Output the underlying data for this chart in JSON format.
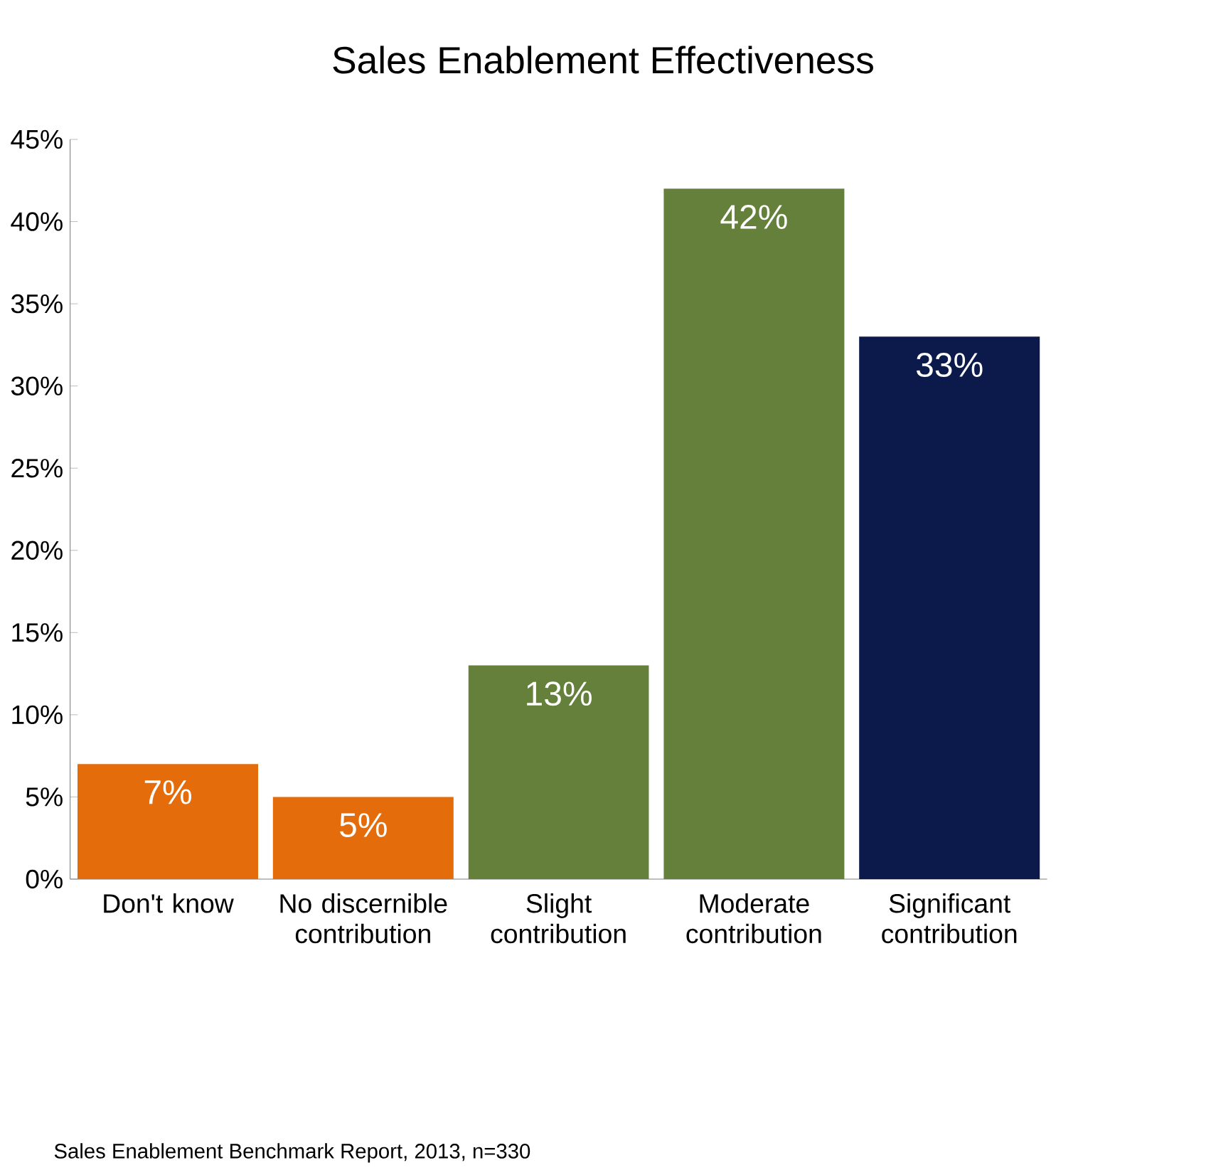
{
  "chart_data": {
    "type": "bar",
    "title": "Sales Enablement Effectiveness",
    "categories": [
      "Don't know",
      "No discernible contribution",
      "Slight contribution",
      "Moderate contribution",
      "Significant contribution"
    ],
    "values": [
      7,
      5,
      13,
      42,
      33
    ],
    "colors": [
      "#e46c0a",
      "#e46c0a",
      "#64803a",
      "#64803a",
      "#0c1a4b"
    ],
    "value_labels": [
      "7%",
      "5%",
      "13%",
      "42%",
      "33%"
    ],
    "ylim": [
      0,
      45
    ],
    "yticks": [
      {
        "value": 0,
        "label": "0%"
      },
      {
        "value": 5,
        "label": "5%"
      },
      {
        "value": 10,
        "label": "10%"
      },
      {
        "value": 15,
        "label": "15%"
      },
      {
        "value": 20,
        "label": "20%"
      },
      {
        "value": 25,
        "label": "25%"
      },
      {
        "value": 30,
        "label": "30%"
      },
      {
        "value": 35,
        "label": "35%"
      },
      {
        "value": 40,
        "label": "40%"
      },
      {
        "value": 45,
        "label": "45%"
      }
    ],
    "annotations": [
      "Sales Enablement Benchmark Report, 2013, n=330"
    ]
  }
}
